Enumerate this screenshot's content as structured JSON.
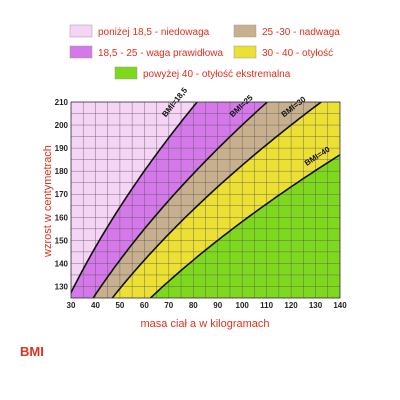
{
  "chart_data": {
    "type": "area",
    "xlabel": "masa ciał a w kilogramach",
    "ylabel": "wzrost w centymetrach",
    "xlim": [
      30,
      140
    ],
    "ylim": [
      125,
      210
    ],
    "x_ticks": [
      30,
      40,
      50,
      60,
      70,
      80,
      90,
      100,
      110,
      120,
      130,
      140
    ],
    "y_ticks": [
      130,
      140,
      150,
      160,
      170,
      180,
      190,
      200,
      210
    ],
    "grid": true,
    "legend_position": "top",
    "legend": [
      {
        "label": "poniżej 18,5 - niedowaga",
        "color": "#f6d4f6"
      },
      {
        "label": "25 -30 - nadwaga",
        "color": "#c8b08e"
      },
      {
        "label": "18,5 - 25 - waga prawidłowa",
        "color": "#d478ea"
      },
      {
        "label": "30 - 40 - otyłość",
        "color": "#ece034"
      },
      {
        "label": "powyżej 40 - otyłość ekstremalna",
        "color": "#7ed81e"
      }
    ],
    "zones": [
      {
        "bmi_min": 0,
        "bmi_max": 18.5,
        "color": "#f6d4f6"
      },
      {
        "bmi_min": 18.5,
        "bmi_max": 25,
        "color": "#d478ea"
      },
      {
        "bmi_min": 25,
        "bmi_max": 30,
        "color": "#c8b08e"
      },
      {
        "bmi_min": 30,
        "bmi_max": 40,
        "color": "#ece034"
      },
      {
        "bmi_min": 40,
        "bmi_max": 1000,
        "color": "#7ed81e"
      }
    ],
    "curves": [
      {
        "bmi": 18.5,
        "label": "BMI=18,5"
      },
      {
        "bmi": 25,
        "label": "BMI=25"
      },
      {
        "bmi": 30,
        "label": "BMI=30"
      },
      {
        "bmi": 40,
        "label": "BMI=40"
      }
    ]
  },
  "footer": {
    "label": "BMI"
  }
}
